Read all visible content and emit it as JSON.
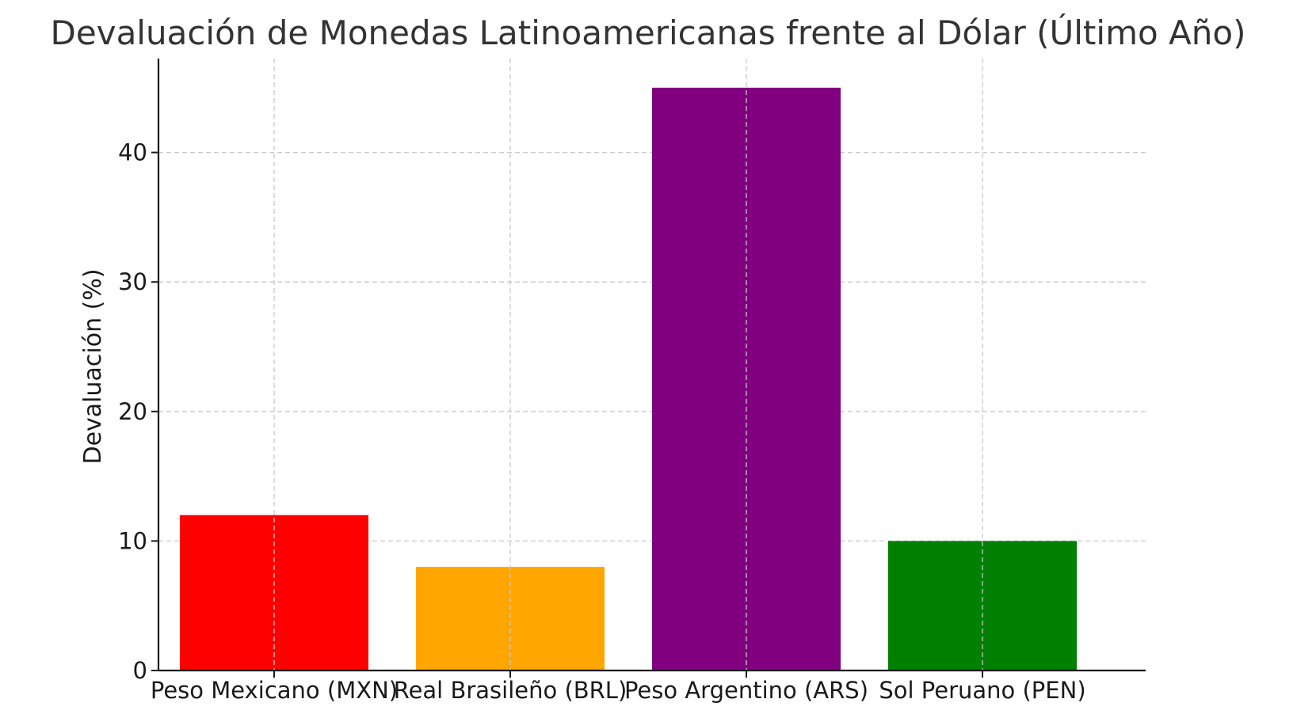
{
  "chart_data": {
    "type": "bar",
    "title": "Devaluación de Monedas Latinoamericanas frente al Dólar (Último Año)",
    "xlabel": "",
    "ylabel": "Devaluación (%)",
    "categories": [
      "Peso Mexicano (MXN)",
      "Real Brasileño (BRL)",
      "Peso Argentino (ARS)",
      "Sol Peruano (PEN)"
    ],
    "values": [
      12,
      8,
      45,
      10
    ],
    "colors": [
      "#ff0000",
      "#ffa500",
      "#800080",
      "#008000"
    ],
    "ylim": [
      0,
      47.25
    ],
    "yticks": [
      0,
      10,
      20,
      30,
      40
    ],
    "grid": true,
    "legend": "none"
  }
}
